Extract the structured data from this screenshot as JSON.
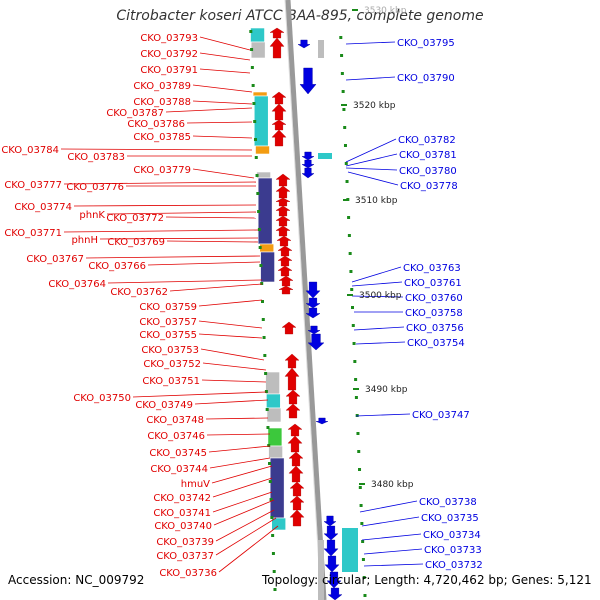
{
  "title": "Citrobacter koseri ATCC BAA-895, complete genome",
  "footer": {
    "accession": "Accession: NC_009792",
    "summary": "Topology: circular; Length: 4,720,462 bp; Genes: 5,121"
  },
  "colors": {
    "forward": "#e00000",
    "reverse": "#0000e0",
    "axis": "#999999",
    "tick": "#1a8a1a",
    "cog_navy": "#3b3b8f",
    "cog_cyan": "#2ec8c8",
    "cog_orange": "#f39c12",
    "cog_gray": "#bdbdbd",
    "cog_green": "#3cc83c",
    "cog_lightcyan": "#7ee8e8"
  },
  "ticks": [
    {
      "label": "3530 kbp"
    },
    {
      "label": "3520 kbp"
    },
    {
      "label": "3510 kbp"
    },
    {
      "label": "3500 kbp"
    },
    {
      "label": "3490 kbp"
    },
    {
      "label": "3480 kbp"
    }
  ],
  "left_labels": [
    "CKO_03793",
    "CKO_03792",
    "CKO_03791",
    "CKO_03789",
    "CKO_03788",
    "CKO_03787",
    "CKO_03786",
    "CKO_03785",
    "CKO_03784",
    "CKO_03783",
    "CKO_03779",
    "CKO_03777",
    "CKO_03776",
    "CKO_03774",
    "phnK",
    "CKO_03772",
    "CKO_03771",
    "phnH",
    "CKO_03769",
    "CKO_03767",
    "CKO_03766",
    "CKO_03764",
    "CKO_03762",
    "CKO_03759",
    "CKO_03757",
    "CKO_03755",
    "CKO_03753",
    "CKO_03752",
    "CKO_03751",
    "CKO_03750",
    "CKO_03749",
    "CKO_03748",
    "CKO_03746",
    "CKO_03745",
    "CKO_03744",
    "hmuV",
    "CKO_03742",
    "CKO_03741",
    "CKO_03740",
    "CKO_03739",
    "CKO_03737",
    "CKO_03736"
  ],
  "right_labels": [
    "CKO_03795",
    "CKO_03790",
    "CKO_03782",
    "CKO_03781",
    "CKO_03780",
    "CKO_03778",
    "CKO_03763",
    "CKO_03761",
    "CKO_03760",
    "CKO_03758",
    "CKO_03756",
    "CKO_03754",
    "CKO_03747",
    "CKO_03738",
    "CKO_03735",
    "CKO_03734",
    "CKO_03733",
    "CKO_03732"
  ]
}
